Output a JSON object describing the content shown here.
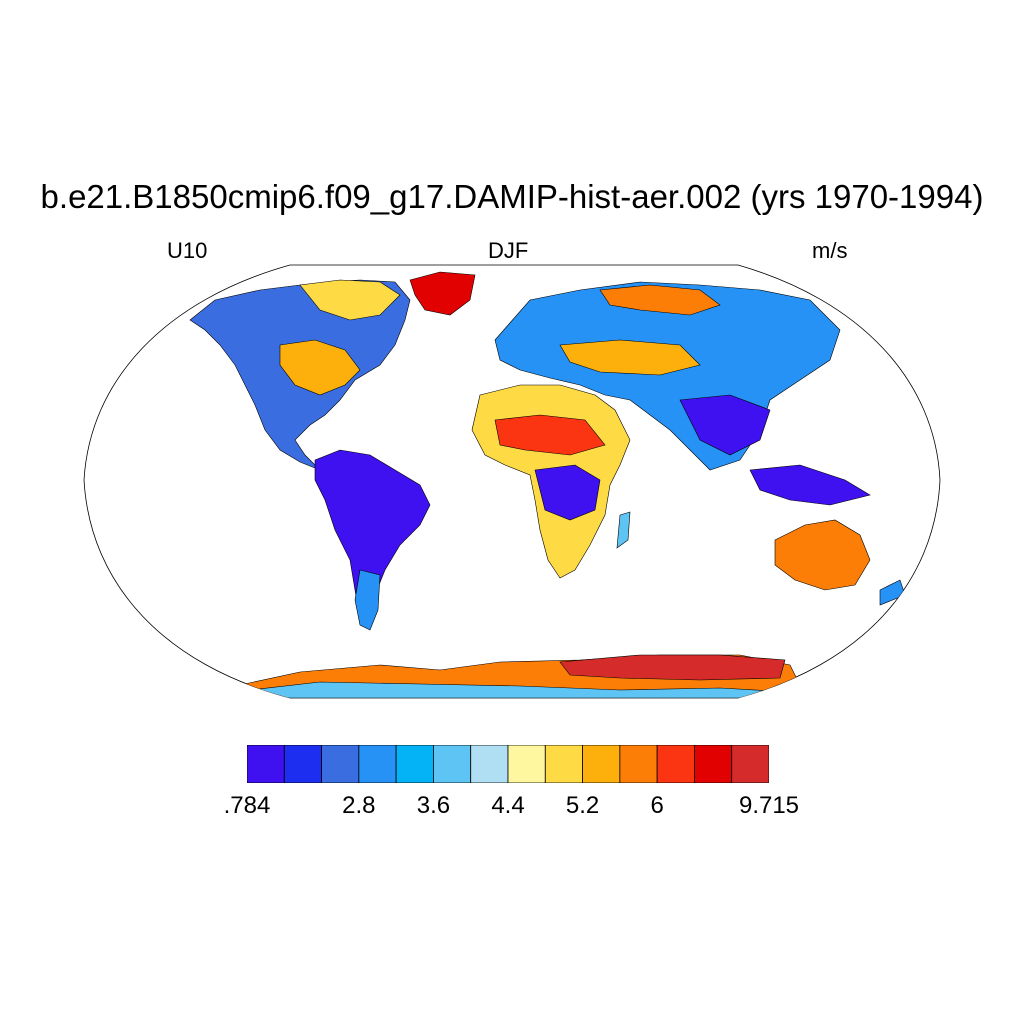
{
  "title": "b.e21.B1850cmip6.f09_g17.DAMIP-hist-aer.002 (yrs 1970-1994)",
  "left_string": "U10",
  "center_string": "DJF",
  "right_string": "m/s",
  "map": {
    "projection": "Robinson",
    "variable": "U10",
    "season": "DJF",
    "ocean_color": "#ffffff"
  },
  "colorbar": {
    "colors": [
      "#3f10f0",
      "#1d2ef0",
      "#3a6ee0",
      "#2792f5",
      "#03b3f5",
      "#5ec4f3",
      "#b0dff3",
      "#fff6a0",
      "#fedb45",
      "#fdb00c",
      "#fd7e07",
      "#fb3411",
      "#e20101",
      "#d52b2b"
    ],
    "tick_labels": [
      ".784",
      "2.8",
      "3.6",
      "4.4",
      "5.2",
      "6",
      "9.715"
    ],
    "tick_values": [
      0.784,
      2.8,
      3.6,
      4.4,
      5.2,
      6,
      9.715
    ],
    "tick_box_positions": [
      0,
      3,
      5,
      7,
      9,
      11,
      14
    ]
  }
}
